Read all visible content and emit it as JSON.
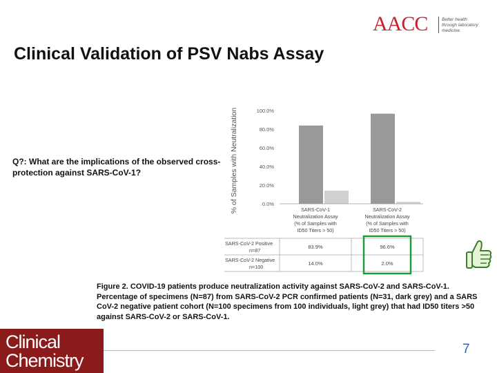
{
  "branding": {
    "aacc_logo": "AACC",
    "aacc_tagline": "Better health through laboratory medicine.",
    "journal_line1": "Clinical",
    "journal_line2": "Chemistry"
  },
  "slide": {
    "title": "Clinical Validation of PSV Nabs Assay",
    "question": "Q?: What are the implications of the observed cross-protection against SARS-CoV-1?",
    "caption": "Figure 2. COVID-19 patients produce neutralization activity against SARS-CoV-2 and SARS-CoV-1. Percentage of specimens (N=87) from SARS-CoV-2 PCR confirmed patients (N=31, dark grey) and a SARS CoV-2 negative patient cohort (N=100 specimens from 100 individuals, light grey) that had ID50 titers >50 against SARS-CoV-2 or SARS-CoV-1.",
    "page_number": "7"
  },
  "chart_data": {
    "type": "bar",
    "ylabel": "% of Samples with Neutralization",
    "ylim": [
      0,
      100
    ],
    "yticks": [
      "0.0%",
      "20.0%",
      "40.0%",
      "60.0%",
      "80.0%",
      "100.0%"
    ],
    "categories": [
      [
        "SARS-CoV-1",
        "Neutralization Assay",
        "(% of Samples with",
        "ID50 Titers > 50)"
      ],
      [
        "SARS-CoV-2",
        "Neutralization Assay",
        "(% of Samples with",
        "ID50 Titers > 50)"
      ]
    ],
    "series": [
      {
        "name": [
          "SARS-CoV-2 Positive",
          "n=87"
        ],
        "values": [
          83.9,
          96.6
        ],
        "labels": [
          "83.9%",
          "96.6%"
        ],
        "color": "#999999"
      },
      {
        "name": [
          "SARS-CoV-2 Negative",
          "n=100"
        ],
        "values": [
          14.0,
          2.0
        ],
        "labels": [
          "14.0%",
          "2.0%"
        ],
        "color": "#d0d0d0"
      }
    ],
    "grid": false,
    "highlight_color": "#1f9a3c"
  }
}
